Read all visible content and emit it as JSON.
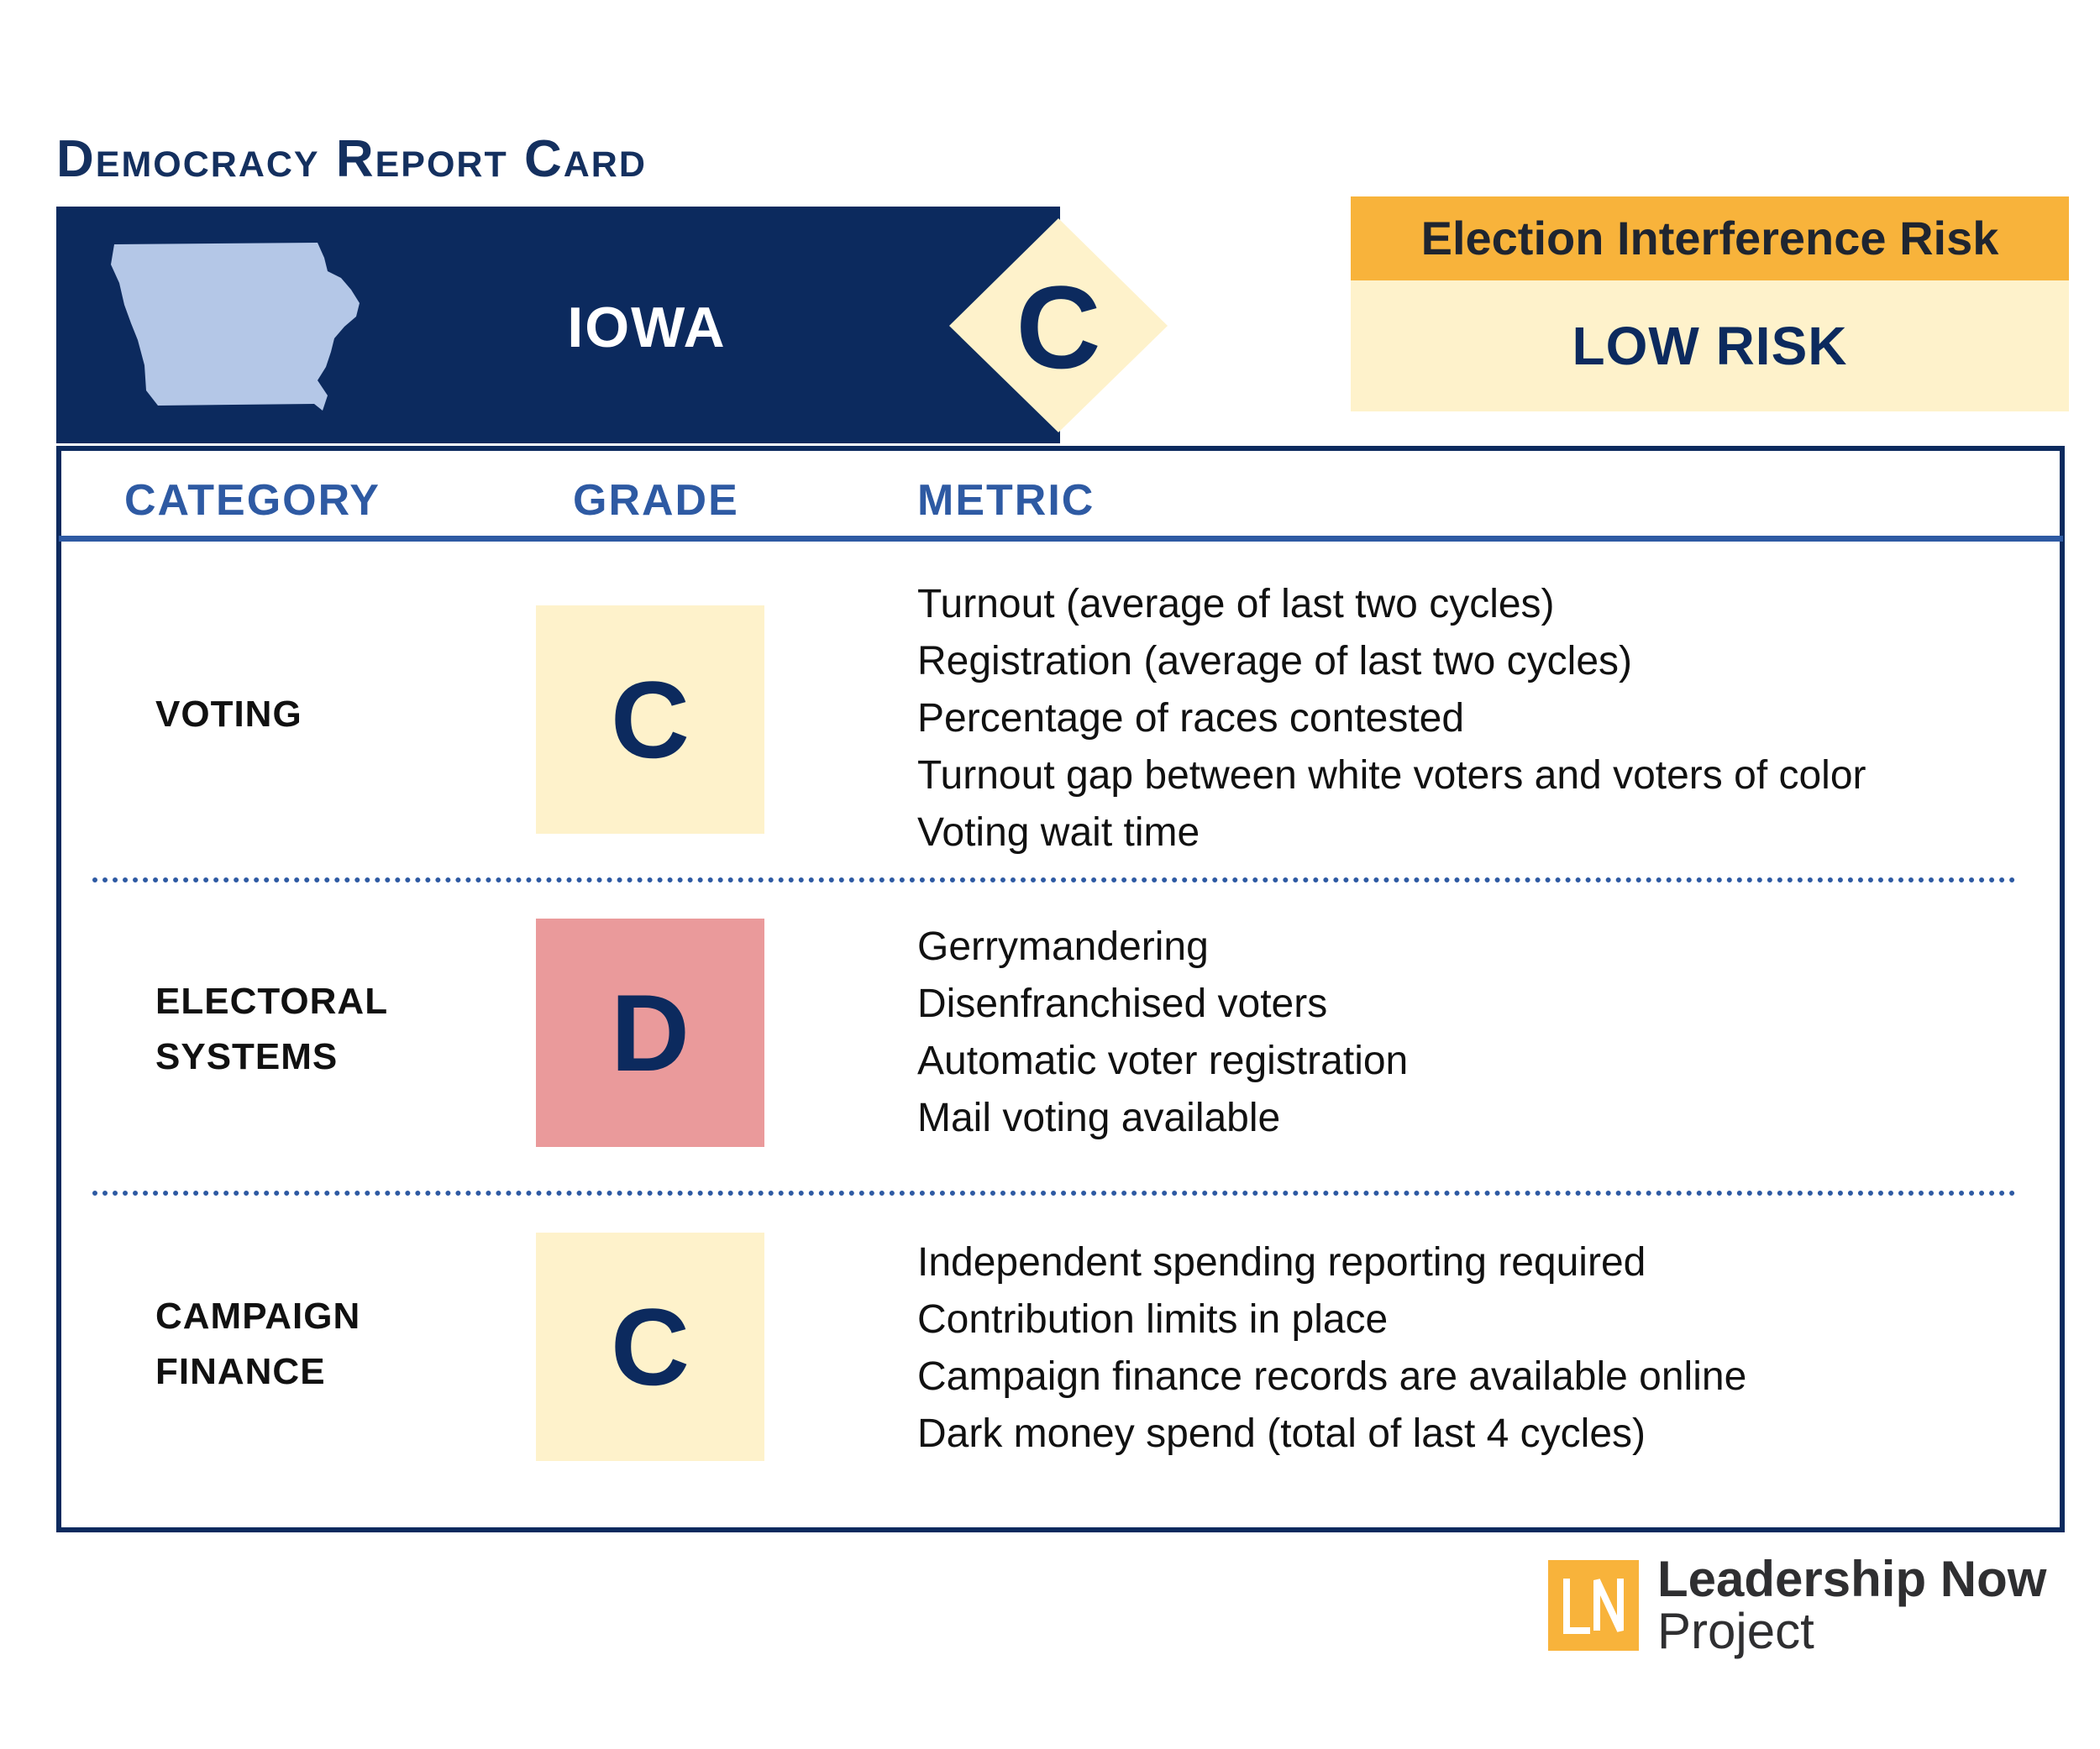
{
  "report": {
    "title": "Democracy Report Card",
    "state": "IOWA",
    "overall_grade": "C"
  },
  "risk": {
    "label": "Election Interference Risk",
    "level": "LOW RISK"
  },
  "table": {
    "headers": {
      "category": "CATEGORY",
      "grade": "GRADE",
      "metric": "METRIC"
    },
    "rows": [
      {
        "category_lines": [
          "VOTING"
        ],
        "grade": "C",
        "metrics": [
          "Turnout (average of last two cycles)",
          "Registration (average of last two cycles)",
          "Percentage of races contested",
          "Turnout gap between white voters and voters of color",
          "Voting wait time"
        ]
      },
      {
        "category_lines": [
          "ELECTORAL",
          "SYSTEMS"
        ],
        "grade": "D",
        "metrics": [
          "Gerrymandering",
          "Disenfranchised voters",
          "Automatic voter registration",
          "Mail voting available"
        ]
      },
      {
        "category_lines": [
          "CAMPAIGN",
          "FINANCE"
        ],
        "grade": "C",
        "metrics": [
          "Independent spending reporting required",
          "Contribution limits in place",
          "Campaign finance records are available online",
          "Dark money spend (total of last 4 cycles)"
        ]
      }
    ]
  },
  "logo": {
    "mark": "LN",
    "line1": "Leadership Now",
    "line2": "Project"
  },
  "colors": {
    "navy": "#0c2a5e",
    "header_blue": "#2e5aa3",
    "state_fill": "#b4c7e7",
    "grade_c_bg": "#fef2cb",
    "grade_d_bg": "#ea9a9b",
    "risk_orange": "#f8b33b"
  }
}
